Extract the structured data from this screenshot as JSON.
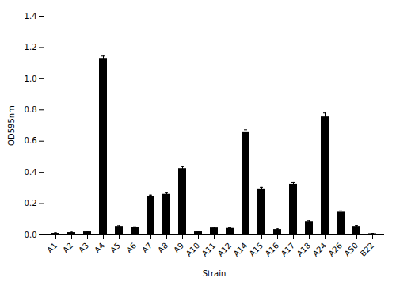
{
  "chart_data": {
    "type": "bar",
    "categories": [
      "A1",
      "A2",
      "A3",
      "A4",
      "A5",
      "A6",
      "A7",
      "A8",
      "A9",
      "A10",
      "A11",
      "A12",
      "A14",
      "A15",
      "A16",
      "A17",
      "A18",
      "A24",
      "A26",
      "A50",
      "B22"
    ],
    "values": [
      0.01,
      0.015,
      0.02,
      1.13,
      0.055,
      0.048,
      0.245,
      0.26,
      0.425,
      0.02,
      0.045,
      0.042,
      0.655,
      0.295,
      0.035,
      0.325,
      0.085,
      0.755,
      0.145,
      0.055,
      0.008
    ],
    "errors": [
      0.003,
      0.003,
      0.003,
      0.015,
      0.004,
      0.004,
      0.01,
      0.008,
      0.012,
      0.003,
      0.004,
      0.004,
      0.018,
      0.01,
      0.004,
      0.01,
      0.005,
      0.025,
      0.008,
      0.005,
      0.002
    ],
    "xlabel": "Strain",
    "ylabel": "OD595nm",
    "ylim": [
      0,
      1.4
    ],
    "yticks": [
      {
        "value": 0,
        "label": "0.0"
      },
      0.2,
      0.4,
      0.6,
      0.8,
      {
        "value": 1,
        "label": "1.0"
      },
      1.2,
      1.4
    ],
    "grid": false
  }
}
